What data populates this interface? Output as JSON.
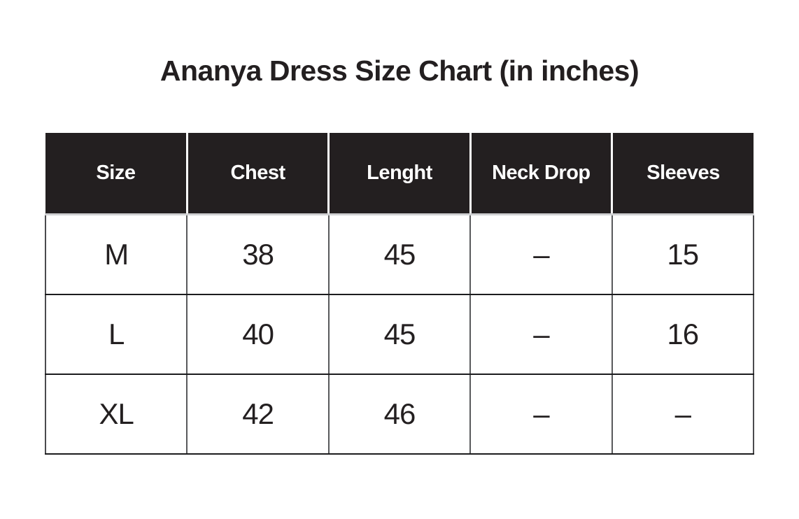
{
  "title": "Ananya Dress Size Chart (in inches)",
  "table": {
    "headers": [
      "Size",
      "Chest",
      "Lenght",
      "Neck Drop",
      "Sleeves"
    ],
    "rows": [
      [
        "M",
        "38",
        "45",
        "–",
        "15"
      ],
      [
        "L",
        "40",
        "45",
        "–",
        "16"
      ],
      [
        "XL",
        "42",
        "46",
        "–",
        "–"
      ]
    ],
    "dash_glyph": "–"
  },
  "colors": {
    "page_background": "#ffffff",
    "header_background": "#231f20",
    "header_text": "#ffffff",
    "body_text": "#231f20",
    "grid_vertical": "#58595b",
    "grid_horizontal": "#1c1c1e",
    "header_underline": "#cfd0d2"
  },
  "chart_data": {
    "type": "table",
    "title": "Ananya Dress Size Chart (in inches)",
    "units": "inches",
    "columns": [
      "Size",
      "Chest",
      "Lenght",
      "Neck Drop",
      "Sleeves"
    ],
    "rows": [
      {
        "size": "M",
        "chest": 38,
        "lenght": 45,
        "neck_drop": null,
        "sleeves": 15
      },
      {
        "size": "L",
        "chest": 40,
        "lenght": 45,
        "neck_drop": null,
        "sleeves": 16
      },
      {
        "size": "XL",
        "chest": 42,
        "lenght": 46,
        "neck_drop": null,
        "sleeves": null
      }
    ],
    "missing_value_marker": "–"
  }
}
